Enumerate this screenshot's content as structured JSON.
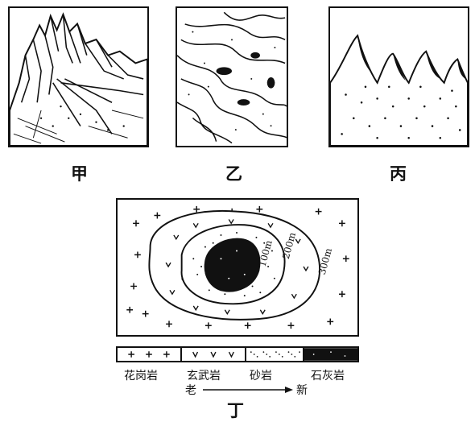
{
  "panels": {
    "jia": {
      "caption": "甲"
    },
    "yi": {
      "caption": "乙"
    },
    "bing": {
      "caption": "丙"
    },
    "ding": {
      "caption": "丁",
      "contours": [
        "100m",
        "200m",
        "300m"
      ]
    }
  },
  "legend": {
    "items": [
      {
        "label": "花岗岩",
        "pattern": "granite-cross"
      },
      {
        "label": "玄武岩",
        "pattern": "basalt-v"
      },
      {
        "label": "砂岩",
        "pattern": "sandstone-dots"
      },
      {
        "label": "石灰岩",
        "pattern": "limestone-dark"
      }
    ],
    "age_old": "老",
    "age_new": "新"
  }
}
